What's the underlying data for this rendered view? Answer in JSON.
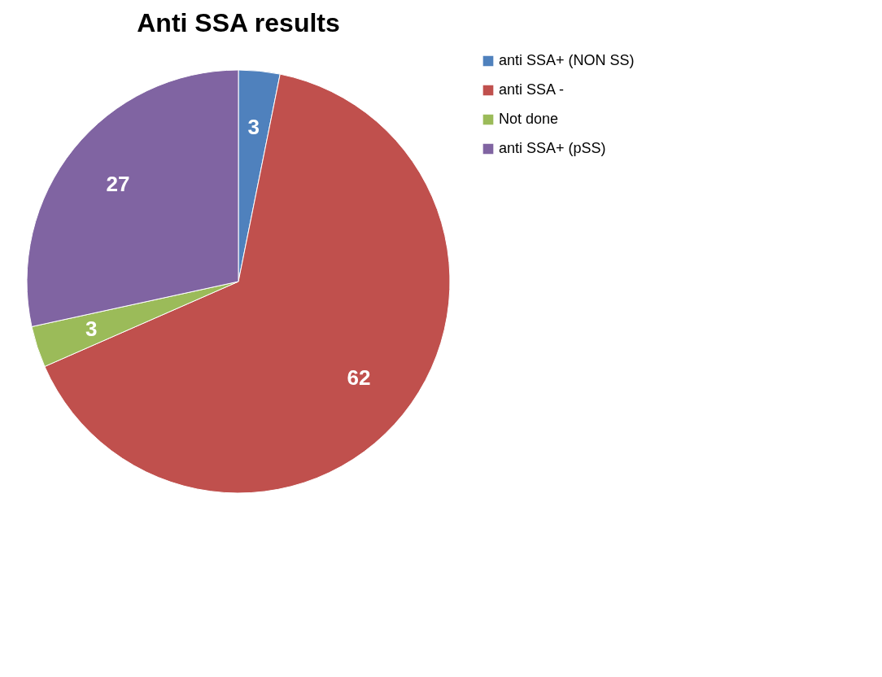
{
  "chart_data": {
    "type": "pie",
    "title": "Anti SSA results",
    "categories": [
      "anti SSA+ (NON SS)",
      "anti SSA -",
      "Not done",
      "anti SSA+ (pSS)"
    ],
    "values": [
      3,
      62,
      3,
      27
    ],
    "colors": [
      "#4f81bd",
      "#c0504d",
      "#9bbb59",
      "#8064a2"
    ],
    "data_labels": true,
    "legend": "right"
  }
}
